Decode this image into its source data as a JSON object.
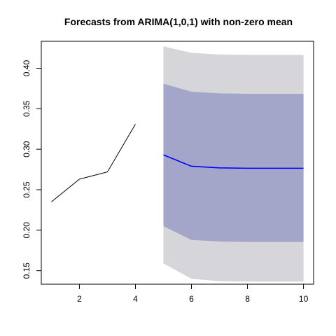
{
  "chart_data": {
    "type": "line",
    "title": "Forecasts from ARIMA(1,0,1) with non-zero mean",
    "xlabel": "",
    "ylabel": "",
    "xlim": [
      0.64,
      10.36
    ],
    "ylim": [
      0.1333,
      0.4333
    ],
    "x_ticks": [
      2,
      4,
      6,
      8,
      10
    ],
    "y_ticks": [
      0.15,
      0.2,
      0.25,
      0.3,
      0.35,
      0.4
    ],
    "x_tick_labels": [
      "2",
      "4",
      "6",
      "8",
      "10"
    ],
    "y_tick_labels": [
      "0.15",
      "0.20",
      "0.25",
      "0.30",
      "0.35",
      "0.40"
    ],
    "grid": false,
    "legend": "none",
    "observed": {
      "x": [
        1,
        2,
        3,
        4
      ],
      "y": [
        0.235,
        0.263,
        0.272,
        0.331
      ],
      "color": "#000000"
    },
    "forecast": {
      "x": [
        5,
        6,
        7,
        8,
        9,
        10
      ],
      "mean": [
        0.293,
        0.279,
        0.277,
        0.2765,
        0.2765,
        0.2765
      ],
      "lo80": [
        0.205,
        0.188,
        0.186,
        0.1855,
        0.1855,
        0.1855
      ],
      "hi80": [
        0.381,
        0.371,
        0.369,
        0.3685,
        0.3685,
        0.3685
      ],
      "lo95": [
        0.159,
        0.14,
        0.137,
        0.1365,
        0.1365,
        0.1365
      ],
      "hi95": [
        0.427,
        0.419,
        0.417,
        0.4165,
        0.4165,
        0.4165
      ],
      "mean_color": "#0000ff",
      "band80_color": "#a3a6c8",
      "band95_color": "#d5d5da"
    }
  }
}
